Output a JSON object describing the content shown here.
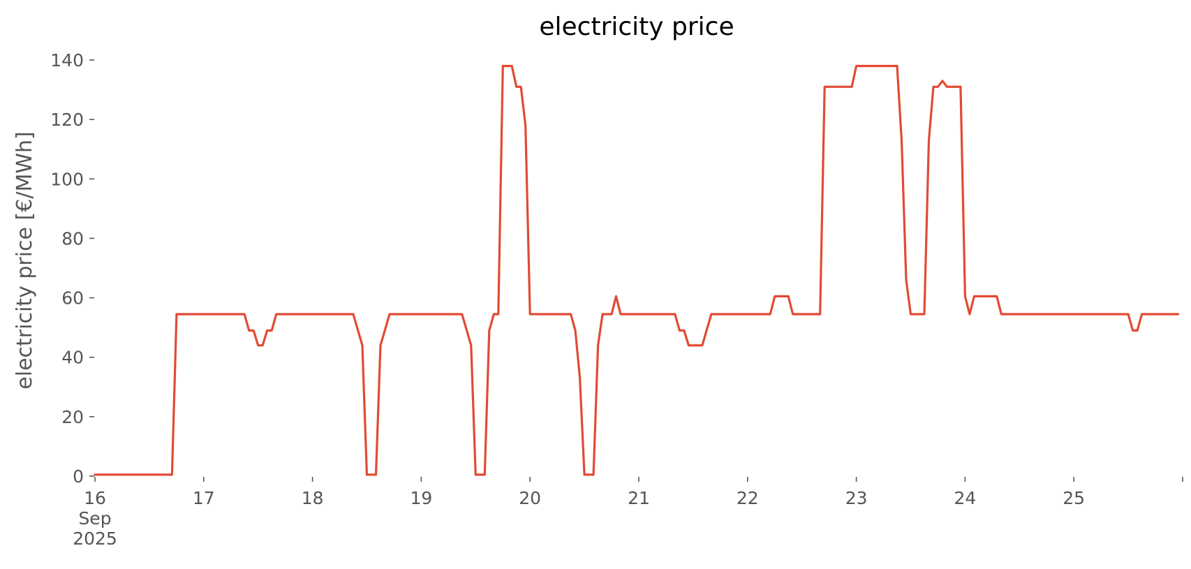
{
  "chart_data": {
    "type": "line",
    "title": "electricity price",
    "xlabel": "",
    "ylabel": "electricity price [€/MWh]",
    "ylim": [
      0,
      140
    ],
    "xlim": [
      "2025-09-16T00:00",
      "2025-09-25T23:00"
    ],
    "grid": false,
    "legend": "none",
    "x_ticks": [
      {
        "date": "2025-09-16",
        "lines": [
          "16",
          "Sep",
          "2025"
        ]
      },
      {
        "date": "2025-09-17",
        "lines": [
          "17"
        ]
      },
      {
        "date": "2025-09-18",
        "lines": [
          "18"
        ]
      },
      {
        "date": "2025-09-19",
        "lines": [
          "19"
        ]
      },
      {
        "date": "2025-09-20",
        "lines": [
          "20"
        ]
      },
      {
        "date": "2025-09-21",
        "lines": [
          "21"
        ]
      },
      {
        "date": "2025-09-22",
        "lines": [
          "22"
        ]
      },
      {
        "date": "2025-09-23",
        "lines": [
          "23"
        ]
      },
      {
        "date": "2025-09-24",
        "lines": [
          "24"
        ]
      },
      {
        "date": "2025-09-25",
        "lines": [
          "25"
        ]
      },
      {
        "date": "2025-09-26",
        "lines": []
      }
    ],
    "y_ticks": [
      0,
      20,
      40,
      60,
      80,
      100,
      120,
      140
    ],
    "series": [
      {
        "color": "#e24a33",
        "points": [
          [
            "2025-09-16T00:00",
            0.5
          ],
          [
            "2025-09-16T08:00",
            0.5
          ],
          [
            "2025-09-16T17:00",
            0.5
          ],
          [
            "2025-09-16T18:00",
            54.5
          ],
          [
            "2025-09-17T09:00",
            54.5
          ],
          [
            "2025-09-17T10:00",
            49
          ],
          [
            "2025-09-17T11:00",
            49
          ],
          [
            "2025-09-17T12:00",
            44
          ],
          [
            "2025-09-17T13:00",
            44
          ],
          [
            "2025-09-17T14:00",
            49
          ],
          [
            "2025-09-17T15:00",
            49
          ],
          [
            "2025-09-17T16:00",
            54.5
          ],
          [
            "2025-09-18T09:00",
            54.5
          ],
          [
            "2025-09-18T11:00",
            44
          ],
          [
            "2025-09-18T12:00",
            0.5
          ],
          [
            "2025-09-18T14:00",
            0.5
          ],
          [
            "2025-09-18T15:00",
            44
          ],
          [
            "2025-09-18T17:00",
            54.5
          ],
          [
            "2025-09-19T09:00",
            54.5
          ],
          [
            "2025-09-19T11:00",
            44
          ],
          [
            "2025-09-19T12:00",
            0.5
          ],
          [
            "2025-09-19T14:00",
            0.5
          ],
          [
            "2025-09-19T15:00",
            49
          ],
          [
            "2025-09-19T16:00",
            54.5
          ],
          [
            "2025-09-19T17:00",
            54.5
          ],
          [
            "2025-09-19T18:00",
            138
          ],
          [
            "2025-09-19T20:00",
            138
          ],
          [
            "2025-09-19T21:00",
            131
          ],
          [
            "2025-09-19T22:00",
            131
          ],
          [
            "2025-09-19T23:00",
            118
          ],
          [
            "2025-09-20T00:00",
            54.5
          ],
          [
            "2025-09-20T09:00",
            54.5
          ],
          [
            "2025-09-20T10:00",
            49
          ],
          [
            "2025-09-20T11:00",
            33
          ],
          [
            "2025-09-20T12:00",
            0.5
          ],
          [
            "2025-09-20T14:00",
            0.5
          ],
          [
            "2025-09-20T15:00",
            44
          ],
          [
            "2025-09-20T16:00",
            54.5
          ],
          [
            "2025-09-20T18:00",
            54.5
          ],
          [
            "2025-09-20T19:00",
            60.5
          ],
          [
            "2025-09-20T20:00",
            54.5
          ],
          [
            "2025-09-21T08:00",
            54.5
          ],
          [
            "2025-09-21T09:00",
            49
          ],
          [
            "2025-09-21T10:00",
            49
          ],
          [
            "2025-09-21T11:00",
            44
          ],
          [
            "2025-09-21T14:00",
            44
          ],
          [
            "2025-09-21T16:00",
            54.5
          ],
          [
            "2025-09-22T05:00",
            54.5
          ],
          [
            "2025-09-22T06:00",
            60.5
          ],
          [
            "2025-09-22T09:00",
            60.5
          ],
          [
            "2025-09-22T10:00",
            54.5
          ],
          [
            "2025-09-22T16:00",
            54.5
          ],
          [
            "2025-09-22T17:00",
            131
          ],
          [
            "2025-09-22T23:00",
            131
          ],
          [
            "2025-09-23T00:00",
            138
          ],
          [
            "2025-09-23T09:00",
            138
          ],
          [
            "2025-09-23T10:00",
            113
          ],
          [
            "2025-09-23T11:00",
            66
          ],
          [
            "2025-09-23T12:00",
            54.5
          ],
          [
            "2025-09-23T15:00",
            54.5
          ],
          [
            "2025-09-23T16:00",
            113
          ],
          [
            "2025-09-23T17:00",
            131
          ],
          [
            "2025-09-23T18:00",
            131
          ],
          [
            "2025-09-23T19:00",
            133
          ],
          [
            "2025-09-23T20:00",
            131
          ],
          [
            "2025-09-23T23:00",
            131
          ],
          [
            "2025-09-24T00:00",
            60.5
          ],
          [
            "2025-09-24T01:00",
            54.5
          ],
          [
            "2025-09-24T02:00",
            60.5
          ],
          [
            "2025-09-24T07:00",
            60.5
          ],
          [
            "2025-09-24T08:00",
            54.5
          ],
          [
            "2025-09-25T12:00",
            54.5
          ],
          [
            "2025-09-25T13:00",
            49
          ],
          [
            "2025-09-25T14:00",
            49
          ],
          [
            "2025-09-25T15:00",
            54.5
          ],
          [
            "2025-09-25T23:00",
            54.5
          ]
        ]
      }
    ]
  }
}
